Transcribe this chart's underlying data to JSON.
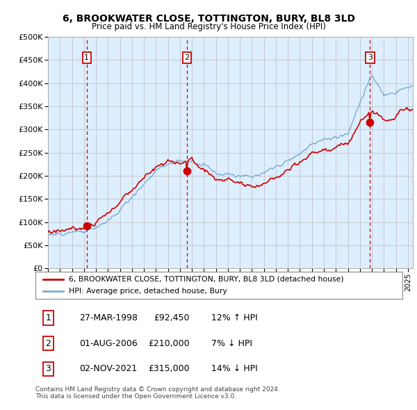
{
  "title": "6, BROOKWATER CLOSE, TOTTINGTON, BURY, BL8 3LD",
  "subtitle": "Price paid vs. HM Land Registry's House Price Index (HPI)",
  "ytick_vals": [
    0,
    50000,
    100000,
    150000,
    200000,
    250000,
    300000,
    350000,
    400000,
    450000,
    500000
  ],
  "hpi_color": "#7aadcf",
  "sale_color": "#cc0000",
  "dashed_color": "#cc0000",
  "background_color": "#ddeeff",
  "sale_points": [
    {
      "date": "1998-03-27",
      "price": 92450,
      "label": "1"
    },
    {
      "date": "2006-08-01",
      "price": 210000,
      "label": "2"
    },
    {
      "date": "2021-11-02",
      "price": 315000,
      "label": "3"
    }
  ],
  "transaction_table": [
    {
      "num": "1",
      "date": "27-MAR-1998",
      "price": "£92,450",
      "hpi": "12% ↑ HPI"
    },
    {
      "num": "2",
      "date": "01-AUG-2006",
      "price": "£210,000",
      "hpi": "7% ↓ HPI"
    },
    {
      "num": "3",
      "date": "02-NOV-2021",
      "price": "£315,000",
      "hpi": "14% ↓ HPI"
    }
  ],
  "legend_entries": [
    "6, BROOKWATER CLOSE, TOTTINGTON, BURY, BL8 3LD (detached house)",
    "HPI: Average price, detached house, Bury"
  ],
  "footnote": "Contains HM Land Registry data © Crown copyright and database right 2024.\nThis data is licensed under the Open Government Licence v3.0.",
  "x_start_year": 1995,
  "x_end_year": 2025,
  "hpi_anchors": {
    "years": [
      1995,
      1996,
      1997,
      1998,
      1999,
      2000,
      2001,
      2002,
      2003,
      2004,
      2005,
      2006,
      2007,
      2008,
      2009,
      2010,
      2011,
      2012,
      2013,
      2014,
      2015,
      2016,
      2017,
      2018,
      2019,
      2020,
      2021,
      2022,
      2023,
      2024,
      2025
    ],
    "prices": [
      72000,
      76000,
      79000,
      82000,
      90000,
      105000,
      125000,
      155000,
      180000,
      210000,
      225000,
      232000,
      238000,
      225000,
      205000,
      205000,
      200000,
      198000,
      205000,
      220000,
      230000,
      248000,
      268000,
      278000,
      285000,
      290000,
      360000,
      420000,
      375000,
      380000,
      395000
    ]
  },
  "red_anchors": {
    "years": [
      1995,
      1996,
      1997,
      1998,
      1999,
      2000,
      2001,
      2002,
      2003,
      2004,
      2005,
      2006,
      2007,
      2008,
      2009,
      2010,
      2011,
      2012,
      2013,
      2014,
      2015,
      2016,
      2017,
      2018,
      2019,
      2020,
      2021,
      2022,
      2023,
      2024,
      2025
    ],
    "prices": [
      78000,
      82000,
      86000,
      90000,
      100000,
      120000,
      145000,
      170000,
      195000,
      215000,
      230000,
      228000,
      240000,
      215000,
      190000,
      192000,
      185000,
      175000,
      182000,
      195000,
      210000,
      228000,
      248000,
      255000,
      262000,
      268000,
      320000,
      340000,
      325000,
      330000,
      345000
    ]
  }
}
